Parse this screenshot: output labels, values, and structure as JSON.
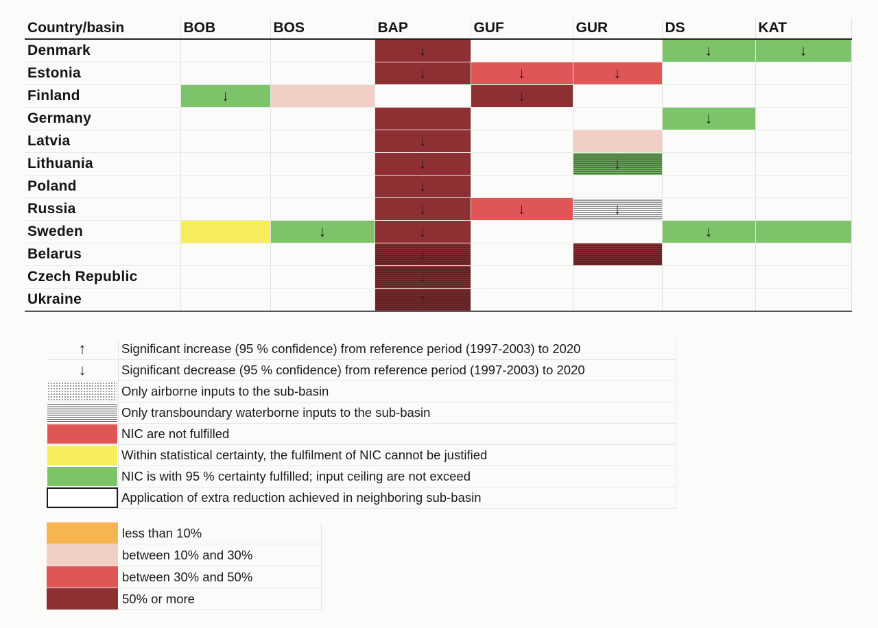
{
  "table": {
    "header": [
      "Country/basin",
      "BOB",
      "BOS",
      "BAP",
      "GUF",
      "GUR",
      "DS",
      "KAT"
    ],
    "rows": [
      {
        "country": "Denmark",
        "cells": [
          {
            "fill": "none",
            "arrow": ""
          },
          {
            "fill": "none",
            "arrow": ""
          },
          {
            "fill": "50% or more",
            "arrow": "↓"
          },
          {
            "fill": "none",
            "arrow": ""
          },
          {
            "fill": "none",
            "arrow": ""
          },
          {
            "fill": "NIC is with 95 % certainty fulfilled",
            "arrow": "↓"
          },
          {
            "fill": "NIC is with 95 % certainty fulfilled",
            "arrow": "↓"
          }
        ]
      },
      {
        "country": "Estonia",
        "cells": [
          {
            "fill": "none",
            "arrow": ""
          },
          {
            "fill": "none",
            "arrow": ""
          },
          {
            "fill": "50% or more",
            "arrow": "↓"
          },
          {
            "fill": "between 30% and 50%",
            "arrow": "↓"
          },
          {
            "fill": "between 30% and 50%",
            "arrow": "↓"
          },
          {
            "fill": "none",
            "arrow": ""
          },
          {
            "fill": "none",
            "arrow": ""
          }
        ]
      },
      {
        "country": "Finland",
        "cells": [
          {
            "fill": "NIC is with 95 % certainty fulfilled",
            "arrow": "↓"
          },
          {
            "fill": "between 10% and 30%",
            "arrow": ""
          },
          {
            "fill": "none",
            "arrow": ""
          },
          {
            "fill": "50% or more",
            "arrow": "↓"
          },
          {
            "fill": "none",
            "arrow": ""
          },
          {
            "fill": "none",
            "arrow": ""
          },
          {
            "fill": "none",
            "arrow": ""
          }
        ]
      },
      {
        "country": "Germany",
        "cells": [
          {
            "fill": "none",
            "arrow": ""
          },
          {
            "fill": "none",
            "arrow": ""
          },
          {
            "fill": "50% or more",
            "arrow": ""
          },
          {
            "fill": "none",
            "arrow": ""
          },
          {
            "fill": "none",
            "arrow": ""
          },
          {
            "fill": "NIC is with 95 % certainty fulfilled",
            "arrow": "↓"
          },
          {
            "fill": "none",
            "arrow": ""
          }
        ]
      },
      {
        "country": "Latvia",
        "cells": [
          {
            "fill": "none",
            "arrow": ""
          },
          {
            "fill": "none",
            "arrow": ""
          },
          {
            "fill": "50% or more",
            "arrow": "↓"
          },
          {
            "fill": "none",
            "arrow": ""
          },
          {
            "fill": "between 10% and 30%",
            "arrow": ""
          },
          {
            "fill": "none",
            "arrow": ""
          },
          {
            "fill": "none",
            "arrow": ""
          }
        ]
      },
      {
        "country": "Lithuania",
        "cells": [
          {
            "fill": "none",
            "arrow": ""
          },
          {
            "fill": "none",
            "arrow": ""
          },
          {
            "fill": "50% or more",
            "arrow": "↓"
          },
          {
            "fill": "none",
            "arrow": ""
          },
          {
            "fill": "NIC is with 95 % certainty fulfilled; transboundary",
            "arrow": "↓"
          },
          {
            "fill": "none",
            "arrow": ""
          },
          {
            "fill": "none",
            "arrow": ""
          }
        ]
      },
      {
        "country": "Poland",
        "cells": [
          {
            "fill": "none",
            "arrow": ""
          },
          {
            "fill": "none",
            "arrow": ""
          },
          {
            "fill": "50% or more",
            "arrow": "↓"
          },
          {
            "fill": "none",
            "arrow": ""
          },
          {
            "fill": "none",
            "arrow": ""
          },
          {
            "fill": "none",
            "arrow": ""
          },
          {
            "fill": "none",
            "arrow": ""
          }
        ]
      },
      {
        "country": "Russia",
        "cells": [
          {
            "fill": "none",
            "arrow": ""
          },
          {
            "fill": "none",
            "arrow": ""
          },
          {
            "fill": "50% or more",
            "arrow": "↓"
          },
          {
            "fill": "between 30% and 50%",
            "arrow": "↓"
          },
          {
            "fill": "Application of extra reduction; transboundary",
            "arrow": "↓"
          },
          {
            "fill": "none",
            "arrow": ""
          },
          {
            "fill": "none",
            "arrow": ""
          }
        ]
      },
      {
        "country": "Sweden",
        "cells": [
          {
            "fill": "Within statistical certainty",
            "arrow": ""
          },
          {
            "fill": "NIC is with 95 % certainty fulfilled",
            "arrow": "↓"
          },
          {
            "fill": "50% or more",
            "arrow": "↓"
          },
          {
            "fill": "none",
            "arrow": ""
          },
          {
            "fill": "none",
            "arrow": ""
          },
          {
            "fill": "NIC is with 95 % certainty fulfilled",
            "arrow": "↓"
          },
          {
            "fill": "NIC is with 95 % certainty fulfilled",
            "arrow": ""
          }
        ]
      },
      {
        "country": "Belarus",
        "cells": [
          {
            "fill": "none",
            "arrow": ""
          },
          {
            "fill": "none",
            "arrow": ""
          },
          {
            "fill": "50% or more; transboundary",
            "arrow": "↓"
          },
          {
            "fill": "none",
            "arrow": ""
          },
          {
            "fill": "50% or more; transboundary",
            "arrow": ""
          },
          {
            "fill": "none",
            "arrow": ""
          },
          {
            "fill": "none",
            "arrow": ""
          }
        ]
      },
      {
        "country": "Czech Republic",
        "cells": [
          {
            "fill": "none",
            "arrow": ""
          },
          {
            "fill": "none",
            "arrow": ""
          },
          {
            "fill": "50% or more; transboundary",
            "arrow": "↓"
          },
          {
            "fill": "none",
            "arrow": ""
          },
          {
            "fill": "none",
            "arrow": ""
          },
          {
            "fill": "none",
            "arrow": ""
          },
          {
            "fill": "none",
            "arrow": ""
          }
        ]
      },
      {
        "country": "Ukraine",
        "cells": [
          {
            "fill": "none",
            "arrow": ""
          },
          {
            "fill": "none",
            "arrow": ""
          },
          {
            "fill": "50% or more; transboundary",
            "arrow": "↑"
          },
          {
            "fill": "none",
            "arrow": ""
          },
          {
            "fill": "none",
            "arrow": ""
          },
          {
            "fill": "none",
            "arrow": ""
          },
          {
            "fill": "none",
            "arrow": ""
          }
        ]
      }
    ]
  },
  "legend_symbols": [
    {
      "symbol": "↑",
      "style": "arrow",
      "text": "Significant increase (95 % confidence) from reference period (1997-2003) to 2020"
    },
    {
      "symbol": "↓",
      "style": "arrow",
      "text": "Significant decrease (95 % confidence) from reference period (1997-2003) to 2020"
    },
    {
      "symbol": "",
      "style": "dots",
      "text": "Only airborne inputs to the sub-basin"
    },
    {
      "symbol": "",
      "style": "hatch",
      "text": "Only transboundary waterborne inputs to the sub-basin"
    },
    {
      "symbol": "",
      "style": "red",
      "text": "NIC are not fulfilled"
    },
    {
      "symbol": "",
      "style": "yellow",
      "text": "Within statistical certainty, the fulfilment of  NIC cannot be justified"
    },
    {
      "symbol": "",
      "style": "green",
      "text": "NIC is with 95 % certainty fulfilled; input ceiling are not exceed"
    },
    {
      "symbol": "",
      "style": "outline",
      "text": "Application of extra reduction achieved in neighboring sub-basin"
    }
  ],
  "legend_percent": [
    {
      "color": "#f7b552",
      "text": "less than 10%"
    },
    {
      "color": "#f2cfc6",
      "text": "between 10% and 30%"
    },
    {
      "color": "#e05555",
      "text": "between 30% and 50%"
    },
    {
      "color": "#8e2f33",
      "text": "50% or more"
    }
  ],
  "colors": {
    "dark_red": "#8e2f33",
    "red": "#e05555",
    "pink": "#f2cfc6",
    "green": "#7cc36a",
    "yellow": "#f7ee5c",
    "orange": "#f7b552"
  }
}
